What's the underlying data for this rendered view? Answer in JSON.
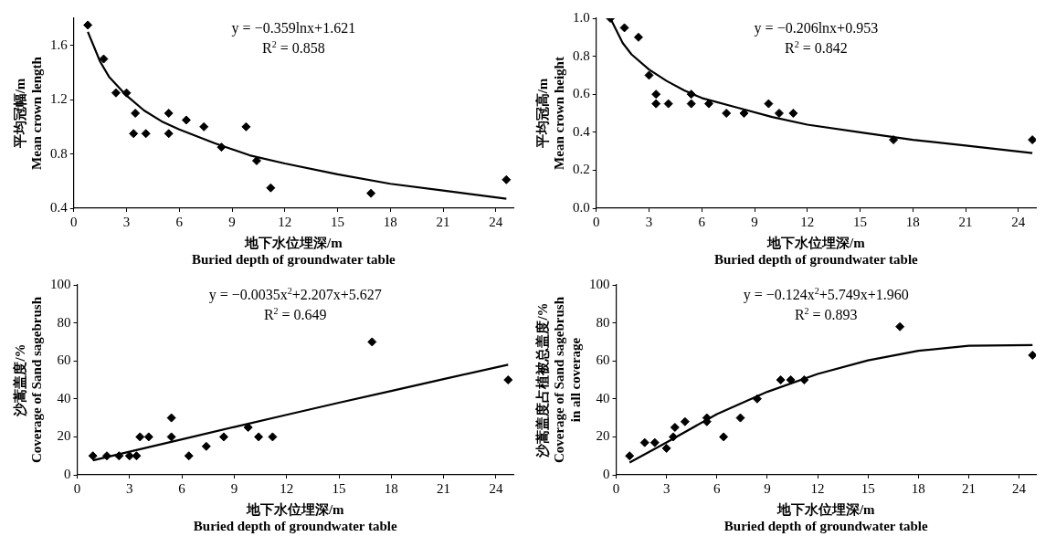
{
  "chart_data": [
    {
      "type": "scatter",
      "xlabel": "地下水位埋深/m\nBuried depth of groundwater table",
      "ylabel": "平均冠幅/m\nMean crown length",
      "xlim": [
        0,
        25
      ],
      "xticks": [
        0,
        3,
        6,
        9,
        12,
        15,
        18,
        21,
        24
      ],
      "ylim": [
        0.4,
        1.8
      ],
      "yticks": [
        0.4,
        0.8,
        1.2,
        1.6
      ],
      "marker": "diamond",
      "annotations": [
        "y = −0.359lnx+1.621",
        "R$^{2}$ = 0.858"
      ],
      "series": [
        {
          "type": "scatter",
          "color": "#000000",
          "x": [
            0.8,
            1.7,
            2.4,
            3.0,
            3.5,
            3.4,
            4.1,
            5.4,
            5.4,
            6.4,
            7.4,
            8.4,
            9.8,
            10.4,
            11.2,
            16.9,
            24.6
          ],
          "values": [
            1.75,
            1.5,
            1.25,
            1.25,
            1.1,
            0.95,
            0.95,
            1.1,
            0.95,
            1.05,
            1.0,
            0.85,
            1.0,
            0.75,
            0.55,
            0.51,
            0.61
          ]
        },
        {
          "type": "line",
          "marker": "none",
          "line_style": "solid",
          "color": "#000000",
          "x": [
            0.8,
            1.5,
            2,
            3,
            4,
            5,
            6,
            8,
            10,
            12,
            15,
            18,
            21,
            24.6
          ],
          "values": [
            1.7,
            1.48,
            1.37,
            1.23,
            1.12,
            1.04,
            0.98,
            0.88,
            0.79,
            0.73,
            0.65,
            0.58,
            0.53,
            0.47
          ]
        }
      ]
    },
    {
      "type": "scatter",
      "xlabel": "地下水位埋深/m\nBuried depth of groundwater table",
      "ylabel": "平均冠高/m\nMean crown height",
      "xlim": [
        0,
        25
      ],
      "xticks": [
        0,
        3,
        6,
        9,
        12,
        15,
        18,
        21,
        24
      ],
      "ylim": [
        0,
        1
      ],
      "yticks": [
        {
          "value": 0,
          "label": "0.0"
        },
        {
          "value": 0.2,
          "label": "0.2"
        },
        {
          "value": 0.4,
          "label": "0.4"
        },
        {
          "value": 0.6,
          "label": "0.6"
        },
        {
          "value": 0.8,
          "label": "0.8"
        },
        {
          "value": 1,
          "label": "1.0"
        }
      ],
      "marker": "diamond",
      "annotations": [
        "y = −0.206lnx+0.953",
        "R$^{2}$ = 0.842"
      ],
      "series": [
        {
          "type": "scatter",
          "color": "#000000",
          "x": [
            0.8,
            1.6,
            2.4,
            3.0,
            3.4,
            3.4,
            4.1,
            5.4,
            5.4,
            6.4,
            7.4,
            8.4,
            9.8,
            10.4,
            11.2,
            16.9,
            24.8
          ],
          "values": [
            1.0,
            0.95,
            0.9,
            0.7,
            0.6,
            0.55,
            0.55,
            0.6,
            0.55,
            0.55,
            0.5,
            0.5,
            0.55,
            0.5,
            0.5,
            0.36,
            0.36
          ]
        },
        {
          "type": "line",
          "marker": "none",
          "line_style": "solid",
          "color": "#000000",
          "x": [
            0.8,
            1.5,
            2,
            3,
            4,
            5,
            6,
            8,
            10,
            12,
            15,
            18,
            21,
            24.8
          ],
          "values": [
            1.0,
            0.87,
            0.81,
            0.73,
            0.67,
            0.62,
            0.58,
            0.53,
            0.48,
            0.44,
            0.4,
            0.36,
            0.33,
            0.29
          ]
        }
      ]
    },
    {
      "type": "scatter",
      "xlabel": "地下水位埋深/m\nBuried depth of groundwater table",
      "ylabel": "沙蒿盖度/%\nCoverage of Sand sagebrush",
      "xlim": [
        0,
        25
      ],
      "xticks": [
        0,
        3,
        6,
        9,
        12,
        15,
        18,
        21,
        24
      ],
      "ylim": [
        0,
        100
      ],
      "yticks": [
        0,
        20,
        40,
        60,
        80,
        100
      ],
      "marker": "diamond",
      "annotations": [
        "y = −0.0035x$^{2}$+2.207x+5.627",
        "R$^{2}$ = 0.649"
      ],
      "series": [
        {
          "type": "scatter",
          "color": "#000000",
          "x": [
            0.9,
            1.0,
            1.7,
            2.4,
            3.0,
            3.4,
            3.6,
            4.1,
            5.4,
            5.4,
            6.4,
            7.4,
            8.4,
            9.8,
            10.4,
            11.2,
            16.9,
            24.7
          ],
          "values": [
            10,
            null,
            10,
            10,
            10,
            10,
            20,
            20,
            30,
            20,
            10,
            15,
            20,
            25,
            20,
            20,
            70,
            50
          ]
        },
        {
          "type": "line",
          "marker": "none",
          "line_style": "solid",
          "color": "#000000",
          "x": [
            0.9,
            3,
            6,
            9,
            12,
            15,
            18,
            21,
            24.7
          ],
          "values": [
            7.6,
            12.2,
            18.7,
            25.2,
            31.6,
            38.0,
            44.2,
            50.4,
            58.0
          ]
        }
      ]
    },
    {
      "type": "scatter",
      "xlabel": "地下水位埋深/m\nBuried depth of groundwater table",
      "ylabel": "沙蒿盖度占植被总盖度/%\nCoverage of Sand sagebrush\nin all coverage",
      "xlim": [
        0,
        25
      ],
      "xticks": [
        0,
        3,
        6,
        9,
        12,
        15,
        18,
        21,
        24
      ],
      "ylim": [
        0,
        100
      ],
      "yticks": [
        0,
        20,
        40,
        60,
        80,
        100
      ],
      "marker": "diamond",
      "annotations": [
        "y = −0.124x$^{2}$+5.749x+1.960",
        "R$^{2}$ = 0.893"
      ],
      "series": [
        {
          "type": "scatter",
          "color": "#000000",
          "x": [
            0.8,
            1.7,
            2.3,
            3.0,
            3.4,
            3.5,
            4.1,
            5.4,
            5.4,
            6.4,
            7.4,
            8.4,
            9.8,
            10.4,
            11.2,
            16.9,
            24.8
          ],
          "values": [
            10,
            17,
            17,
            14,
            20,
            25,
            28,
            30,
            28,
            20,
            30,
            40,
            50,
            50,
            50,
            78,
            63
          ]
        },
        {
          "type": "line",
          "marker": "none",
          "line_style": "solid",
          "color": "#000000",
          "x": [
            0.8,
            3,
            6,
            9,
            12,
            15,
            18,
            21,
            24.8
          ],
          "values": [
            6.5,
            17.1,
            32.0,
            43.7,
            53.1,
            60.3,
            65.3,
            68.0,
            68.3
          ]
        }
      ]
    }
  ]
}
